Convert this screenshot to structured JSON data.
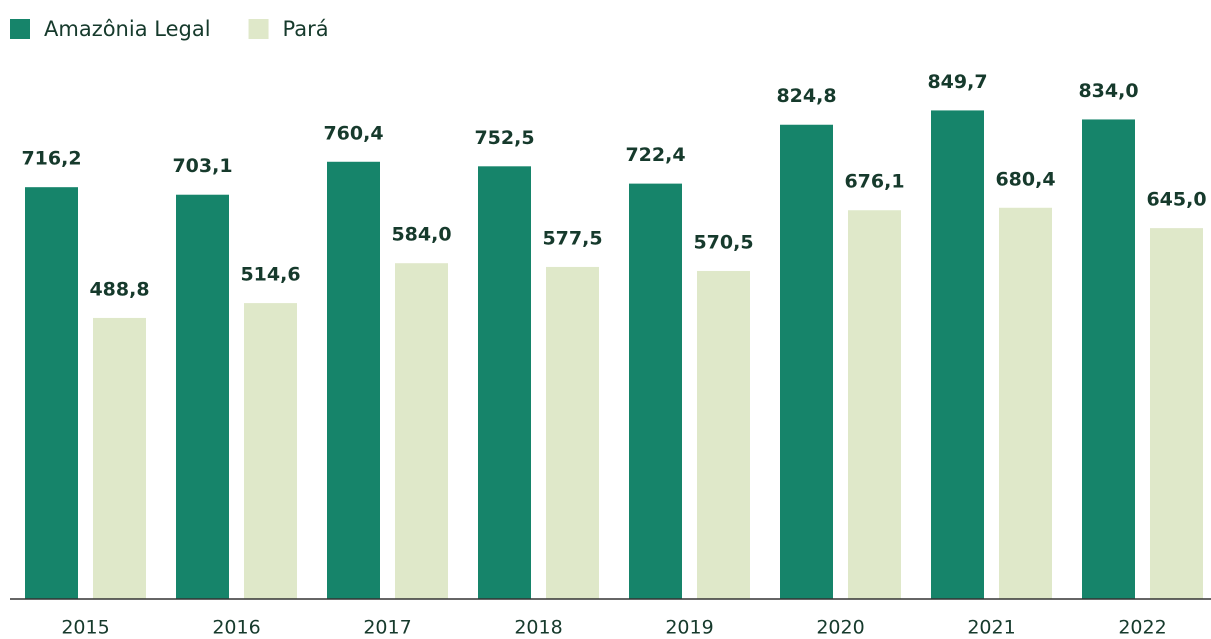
{
  "chart_data": {
    "type": "bar",
    "categories": [
      "2015",
      "2016",
      "2017",
      "2018",
      "2019",
      "2020",
      "2021",
      "2022"
    ],
    "series": [
      {
        "name": "Amazônia Legal",
        "color": "#16846a",
        "values": [
          716.2,
          703.1,
          760.4,
          752.5,
          722.4,
          824.8,
          849.7,
          834.0
        ],
        "value_labels": [
          "716,2",
          "703,1",
          "760,4",
          "752,5",
          "722,4",
          "824,8",
          "849,7",
          "834,0"
        ]
      },
      {
        "name": "Pará",
        "color": "#dfe8c9",
        "values": [
          488.8,
          514.6,
          584.0,
          577.5,
          570.5,
          676.1,
          680.4,
          645.0
        ],
        "value_labels": [
          "488,8",
          "514,6",
          "584,0",
          "577,5",
          "570,5",
          "676,1",
          "680,4",
          "645,0"
        ]
      }
    ],
    "ylim": [
      0,
      1000
    ],
    "legend": "top-left"
  }
}
